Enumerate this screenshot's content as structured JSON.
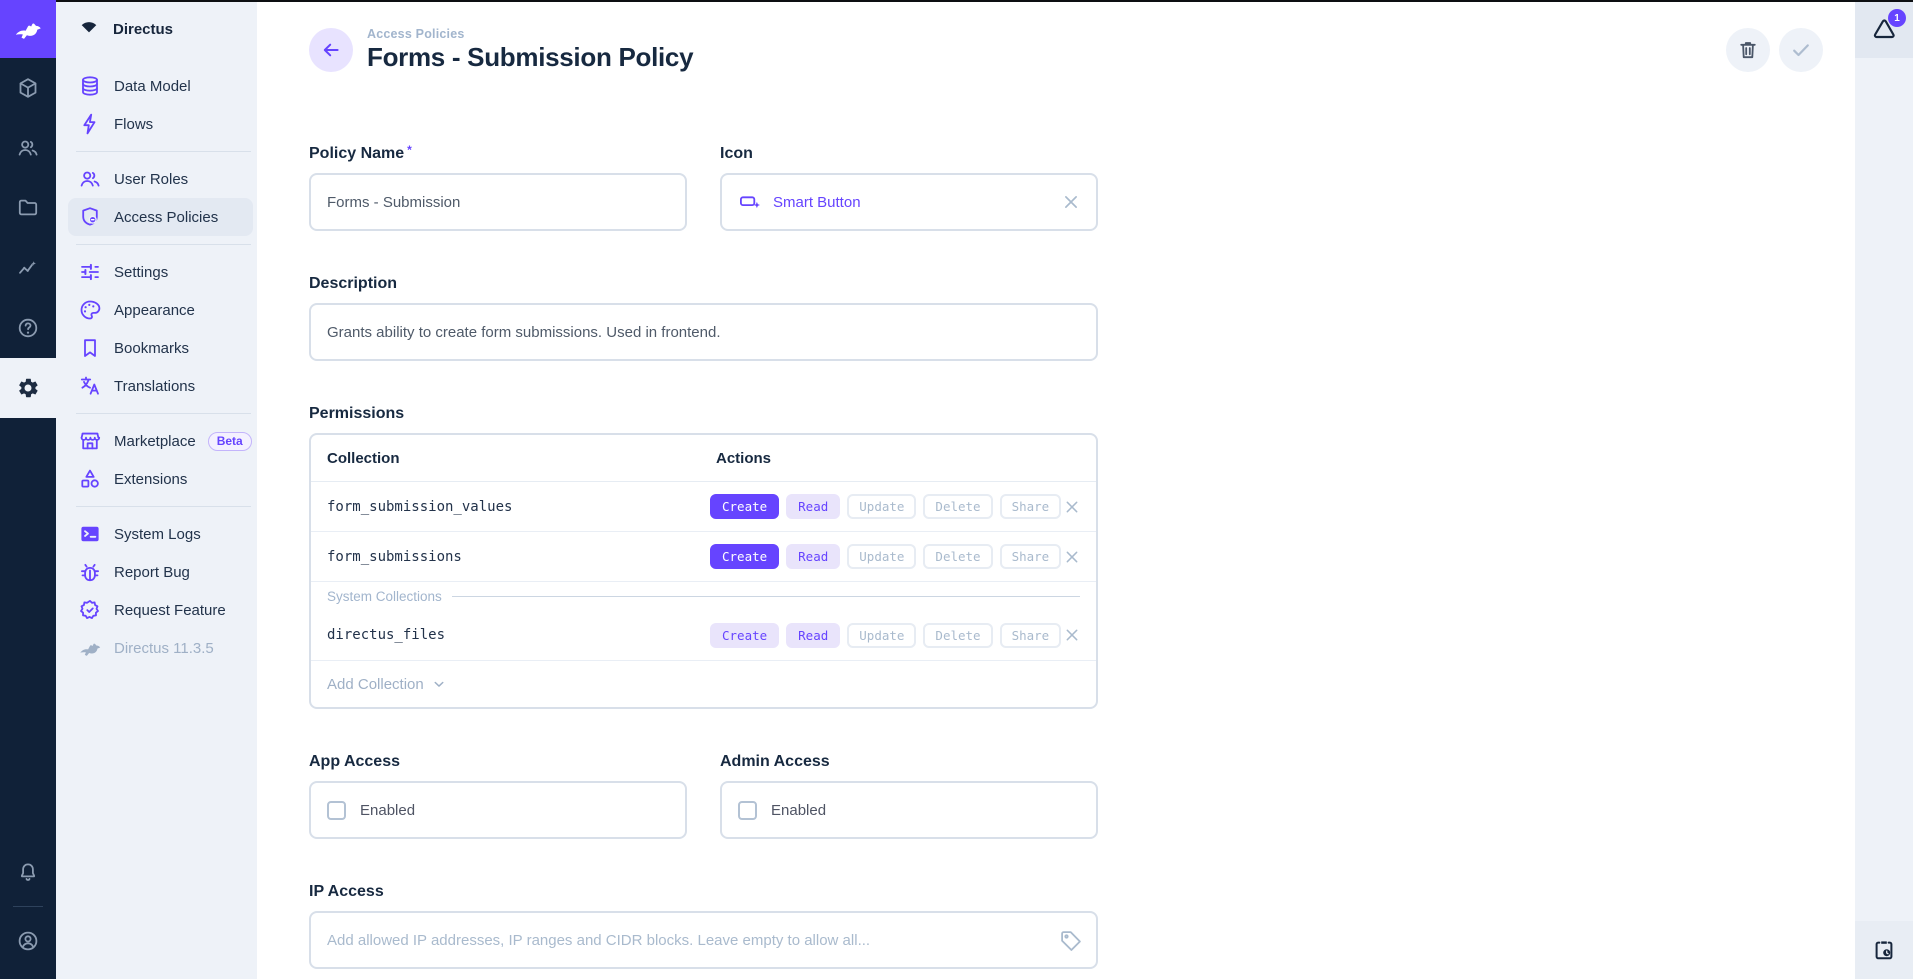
{
  "colors": {
    "accent": "#6644ff",
    "navy": "#172940",
    "rail_bg": "#102138",
    "sidebar_bg": "#eef2f8",
    "muted": "#a2b5cd"
  },
  "rail": {
    "modules": [
      {
        "icon": "box-icon",
        "active": false
      },
      {
        "icon": "users-icon",
        "active": false
      },
      {
        "icon": "folder-icon",
        "active": false
      },
      {
        "icon": "insights-icon",
        "active": false
      },
      {
        "icon": "help-icon",
        "active": false
      },
      {
        "icon": "settings-icon",
        "active": true
      }
    ],
    "bottom": [
      {
        "icon": "bell-icon"
      },
      {
        "icon": "account-icon"
      }
    ]
  },
  "sidebar": {
    "project_name": "Directus",
    "items": [
      {
        "label": "Data Model",
        "icon": "database-icon"
      },
      {
        "label": "Flows",
        "icon": "bolt-icon"
      },
      {
        "divider": true
      },
      {
        "label": "User Roles",
        "icon": "user-roles-icon"
      },
      {
        "label": "Access Policies",
        "icon": "shield-badge-icon",
        "active": true
      },
      {
        "divider": true
      },
      {
        "label": "Settings",
        "icon": "tune-icon"
      },
      {
        "label": "Appearance",
        "icon": "palette-icon"
      },
      {
        "label": "Bookmarks",
        "icon": "bookmark-icon"
      },
      {
        "label": "Translations",
        "icon": "translate-icon"
      },
      {
        "divider": true
      },
      {
        "label": "Marketplace",
        "icon": "storefront-icon",
        "badge": "Beta"
      },
      {
        "label": "Extensions",
        "icon": "category-icon"
      },
      {
        "divider": true
      },
      {
        "label": "System Logs",
        "icon": "terminal-icon"
      },
      {
        "label": "Report Bug",
        "icon": "bug-icon"
      },
      {
        "label": "Request Feature",
        "icon": "feature-icon"
      },
      {
        "label": "Directus 11.3.5",
        "icon": "rabbit-icon",
        "muted": true
      }
    ]
  },
  "header": {
    "breadcrumb": "Access Policies",
    "title": "Forms - Submission Policy",
    "required_marker": "*"
  },
  "form": {
    "policy_name": {
      "label": "Policy Name",
      "value": "Forms - Submission"
    },
    "icon_field": {
      "label": "Icon",
      "value": "Smart Button"
    },
    "description": {
      "label": "Description",
      "value": "Grants ability to create form submissions. Used in frontend."
    },
    "permissions": {
      "label": "Permissions",
      "columns": {
        "collection": "Collection",
        "actions": "Actions"
      },
      "actions": [
        "Create",
        "Read",
        "Update",
        "Delete",
        "Share"
      ],
      "rows": [
        {
          "collection": "form_submission_values",
          "states": {
            "Create": "full",
            "Read": "partial",
            "Update": "none",
            "Delete": "none",
            "Share": "none"
          }
        },
        {
          "collection": "form_submissions",
          "states": {
            "Create": "full",
            "Read": "partial",
            "Update": "none",
            "Delete": "none",
            "Share": "none"
          }
        },
        {
          "collection": "directus_files",
          "system": true,
          "states": {
            "Create": "partial",
            "Read": "partial",
            "Update": "none",
            "Delete": "none",
            "Share": "none"
          }
        }
      ],
      "system_divider_label": "System Collections",
      "add_collection_label": "Add Collection"
    },
    "app_access": {
      "label": "App Access",
      "checkbox_label": "Enabled",
      "checked": false
    },
    "admin_access": {
      "label": "Admin Access",
      "checkbox_label": "Enabled",
      "checked": false
    },
    "ip_access": {
      "label": "IP Access",
      "placeholder": "Add allowed IP addresses, IP ranges and CIDR blocks. Leave empty to allow all..."
    }
  },
  "rightbar": {
    "notification_count": "1"
  }
}
